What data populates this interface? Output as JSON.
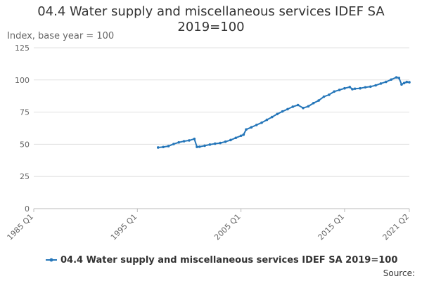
{
  "chart_data": {
    "type": "line",
    "title_lines": [
      "04.4 Water supply and miscellaneous services IDEF SA",
      "2019=100"
    ],
    "ylabel": "Index, base year = 100",
    "ylim": [
      0,
      125
    ],
    "y_ticks": [
      0,
      25,
      50,
      75,
      100,
      125
    ],
    "x_range": [
      "1985 Q1",
      "2021 Q2"
    ],
    "x_ticks": [
      "1985 Q1",
      "1995 Q1",
      "2005 Q1",
      "2015 Q1",
      "2021 Q2"
    ],
    "grid": true,
    "legend_position": "bottom",
    "colors": {
      "series": "#2576b9",
      "grid": "#e0e0e0"
    },
    "series": [
      {
        "name": "04.4 Water supply and miscellaneous services IDEF SA 2019=100",
        "points": [
          [
            "1997 Q1",
            47.5
          ],
          [
            "1997 Q3",
            47.9
          ],
          [
            "1998 Q1",
            48.6
          ],
          [
            "1998 Q3",
            50.2
          ],
          [
            "1999 Q1",
            51.5
          ],
          [
            "1999 Q3",
            52.4
          ],
          [
            "2000 Q1",
            53.0
          ],
          [
            "2000 Q3",
            54.2
          ],
          [
            "2000 Q4",
            48.0
          ],
          [
            "2001 Q1",
            48.1
          ],
          [
            "2001 Q3",
            48.9
          ],
          [
            "2002 Q1",
            49.8
          ],
          [
            "2002 Q3",
            50.5
          ],
          [
            "2003 Q1",
            51.0
          ],
          [
            "2003 Q3",
            52.0
          ],
          [
            "2004 Q1",
            53.3
          ],
          [
            "2004 Q3",
            55.0
          ],
          [
            "2005 Q1",
            56.6
          ],
          [
            "2005 Q2",
            57.5
          ],
          [
            "2005 Q3",
            61.5
          ],
          [
            "2006 Q1",
            63.2
          ],
          [
            "2006 Q3",
            65.0
          ],
          [
            "2007 Q1",
            66.8
          ],
          [
            "2007 Q3",
            69.0
          ],
          [
            "2008 Q1",
            71.2
          ],
          [
            "2008 Q3",
            73.5
          ],
          [
            "2009 Q1",
            75.5
          ],
          [
            "2009 Q3",
            77.3
          ],
          [
            "2010 Q1",
            79.2
          ],
          [
            "2010 Q3",
            80.5
          ],
          [
            "2011 Q1",
            78.2
          ],
          [
            "2011 Q3",
            79.5
          ],
          [
            "2012 Q1",
            82.0
          ],
          [
            "2012 Q3",
            84.0
          ],
          [
            "2013 Q1",
            87.0
          ],
          [
            "2013 Q3",
            88.5
          ],
          [
            "2014 Q1",
            91.0
          ],
          [
            "2014 Q3",
            92.2
          ],
          [
            "2015 Q1",
            93.5
          ],
          [
            "2015 Q3",
            94.5
          ],
          [
            "2015 Q4",
            92.8
          ],
          [
            "2016 Q1",
            93.2
          ],
          [
            "2016 Q3",
            93.5
          ],
          [
            "2017 Q1",
            94.3
          ],
          [
            "2017 Q3",
            94.8
          ],
          [
            "2018 Q1",
            95.8
          ],
          [
            "2018 Q3",
            97.2
          ],
          [
            "2019 Q1",
            98.5
          ],
          [
            "2019 Q3",
            100.3
          ],
          [
            "2020 Q1",
            102.0
          ],
          [
            "2020 Q2",
            101.5
          ],
          [
            "2020 Q3",
            96.5
          ],
          [
            "2020 Q4",
            97.6
          ],
          [
            "2021 Q1",
            98.4
          ],
          [
            "2021 Q2",
            98.2
          ]
        ]
      }
    ]
  },
  "source_label": "Source:"
}
